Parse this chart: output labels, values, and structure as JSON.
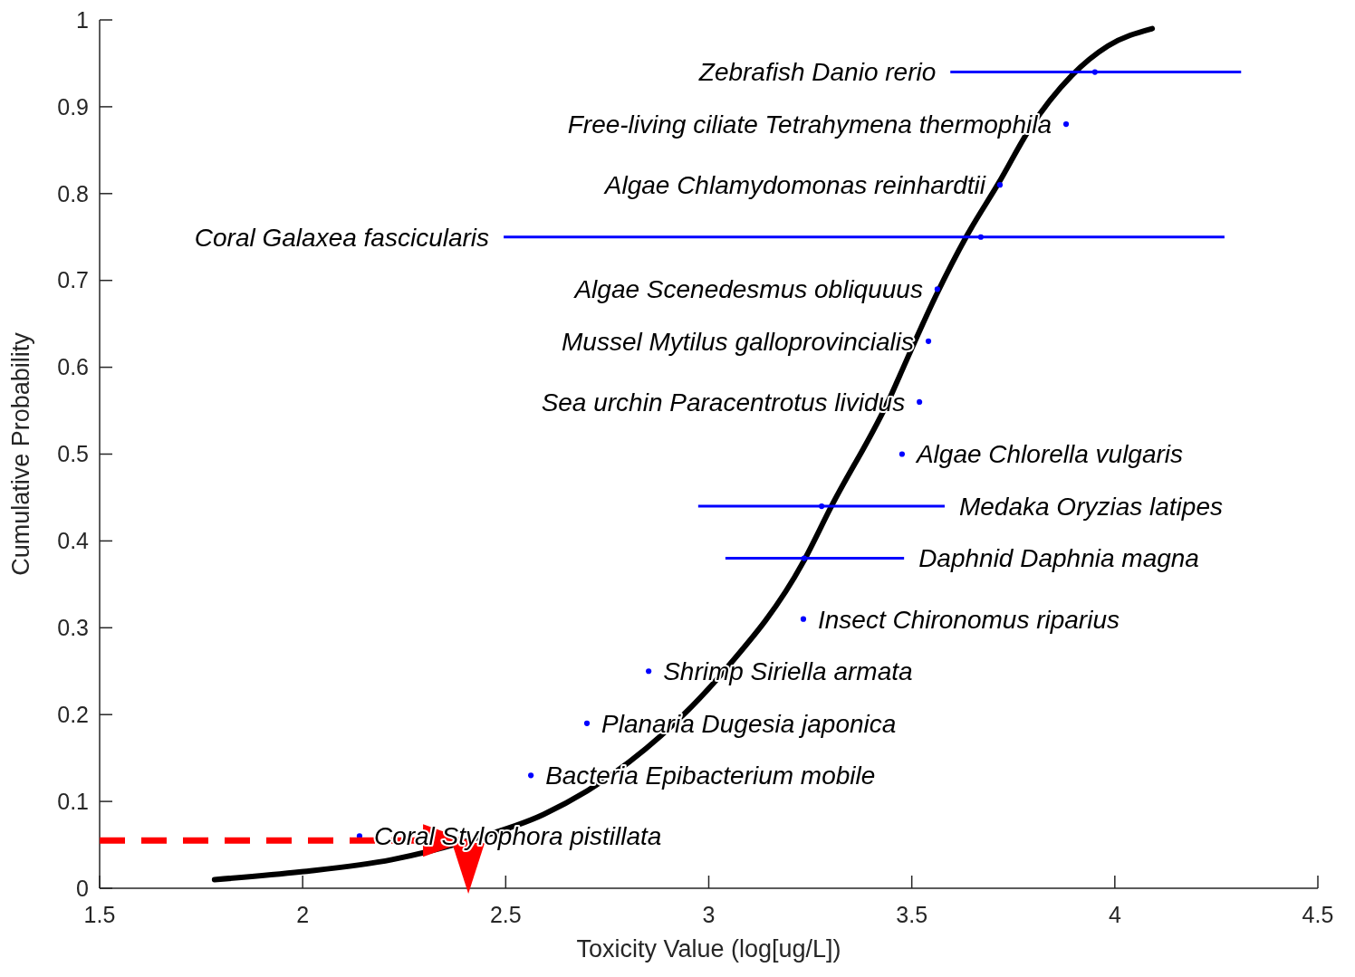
{
  "chart_data": {
    "type": "scatter",
    "xlabel": "Toxicity Value (log[ug/L])",
    "ylabel": "Cumulative Probability",
    "xlim": [
      1.5,
      4.5
    ],
    "ylim": [
      0,
      1
    ],
    "xticks": [
      1.5,
      2,
      2.5,
      3,
      3.5,
      4,
      4.5
    ],
    "yticks": [
      0,
      0.1,
      0.2,
      0.3,
      0.4,
      0.5,
      0.6,
      0.7,
      0.8,
      0.9,
      1
    ],
    "grid": false,
    "series": [
      {
        "type": "line",
        "color": "#000000",
        "x": [
          1.783,
          1.997,
          2.22,
          2.408,
          2.593,
          2.803,
          3.03,
          3.233,
          3.3,
          3.452,
          3.47,
          3.559,
          3.635,
          3.715,
          3.791,
          3.894,
          3.983,
          4.092
        ],
        "values": [
          0.01,
          0.019,
          0.033,
          0.055,
          0.085,
          0.145,
          0.246,
          0.376,
          0.438,
          0.571,
          0.59,
          0.682,
          0.751,
          0.813,
          0.875,
          0.936,
          0.97,
          0.99
        ]
      },
      {
        "color": "#0000ff",
        "marker": "circle",
        "x": [
          2.14,
          2.562,
          2.7,
          2.852,
          3.233,
          3.235,
          3.278,
          3.476,
          3.519,
          3.541,
          3.563,
          3.67,
          3.717,
          3.88,
          3.951
        ],
        "values": [
          0.06,
          0.13,
          0.19,
          0.25,
          0.31,
          0.38,
          0.44,
          0.5,
          0.56,
          0.63,
          0.69,
          0.75,
          0.81,
          0.88,
          0.94
        ],
        "xerrors": [
          null,
          null,
          null,
          null,
          null,
          [
            3.041,
            3.481
          ],
          [
            2.974,
            3.581
          ],
          null,
          null,
          null,
          null,
          [
            2.495,
            4.27
          ],
          null,
          null,
          [
            3.595,
            4.311
          ]
        ]
      }
    ],
    "ref_lines": [
      {
        "axis": "y",
        "value": 0.055,
        "color": "#ff0000",
        "line_style": "dashed"
      }
    ],
    "annotations": [
      "Coral Stylophora pistillata",
      "Bacteria Epibacterium mobile",
      "Planaria Dugesia japonica",
      "Shrimp Siriella armata",
      "Insect Chironomus riparius",
      "Daphnid Daphnia magna",
      "Medaka Oryzias latipes",
      "Algae Chlorella vulgaris",
      "Sea urchin Paracentrotus lividus",
      "Mussel Mytilus galloprovincialis",
      "Algae Scenedesmus obliquuus",
      "Coral Galaxea fascicularis",
      "Algae Chlamydomonas reinhardtii",
      "Free-living ciliate Tetrahymena thermophila",
      "Zebrafish Danio rerio"
    ]
  }
}
